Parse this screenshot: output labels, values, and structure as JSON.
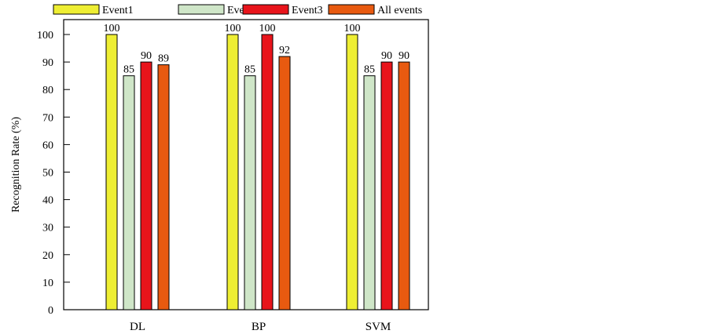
{
  "chart_data": {
    "type": "bar",
    "title": "",
    "xlabel": "",
    "ylabel": "Recognition Rate (%)",
    "ylim": [
      0,
      100
    ],
    "yticks": [
      0,
      10,
      20,
      30,
      40,
      50,
      60,
      70,
      80,
      90,
      100
    ],
    "grid": false,
    "legend_position": "top",
    "categories": [
      "DL",
      "BP",
      "SVM"
    ],
    "series": [
      {
        "name": "Event1",
        "color": "#eeee33",
        "values": [
          100,
          100,
          100
        ],
        "labels": [
          "100",
          "100",
          "100"
        ]
      },
      {
        "name": "Event2",
        "color": "#cfe6c8",
        "values": [
          85,
          85,
          85
        ],
        "labels": [
          "85",
          "85",
          "85"
        ]
      },
      {
        "name": "Event3",
        "color": "#e8141b",
        "values": [
          90,
          100,
          90
        ],
        "labels": [
          "90",
          "100",
          "90"
        ]
      },
      {
        "name": "All events",
        "color": "#e85a10",
        "values": [
          89,
          92,
          90
        ],
        "labels": [
          "89",
          "92",
          "90"
        ]
      }
    ]
  }
}
